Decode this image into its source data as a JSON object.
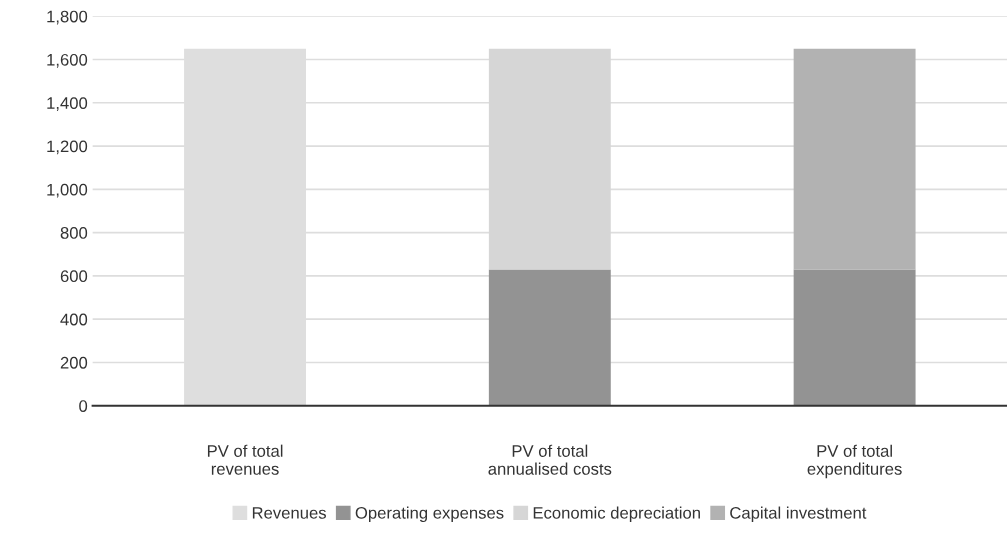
{
  "chart_data": {
    "type": "bar",
    "stacked": true,
    "categories": [
      "PV of total\nrevenues",
      "PV of total\nannualised costs",
      "PV of total\nexpenditures"
    ],
    "series": [
      {
        "name": "Revenues",
        "color": "#dedede",
        "values": [
          1650,
          null,
          null
        ]
      },
      {
        "name": "Operating expenses",
        "color": "#939393",
        "values": [
          null,
          630,
          630
        ]
      },
      {
        "name": "Economic depreciation",
        "color": "#d6d6d6",
        "values": [
          null,
          1020,
          null
        ]
      },
      {
        "name": "Capital investment",
        "color": "#b2b2b2",
        "values": [
          null,
          null,
          1020
        ]
      }
    ],
    "ylim": [
      0,
      1800
    ],
    "yticks": [
      {
        "value": 0,
        "label": "0"
      },
      {
        "value": 200,
        "label": "200"
      },
      {
        "value": 400,
        "label": "400"
      },
      {
        "value": 600,
        "label": "600"
      },
      {
        "value": 800,
        "label": "800"
      },
      {
        "value": 1000,
        "label": "1,000"
      },
      {
        "value": 1200,
        "label": "1,200"
      },
      {
        "value": 1400,
        "label": "1,400"
      },
      {
        "value": 1600,
        "label": "1,600"
      },
      {
        "value": 1800,
        "label": "1,800"
      }
    ],
    "grid": "y",
    "legend": "bottom"
  }
}
